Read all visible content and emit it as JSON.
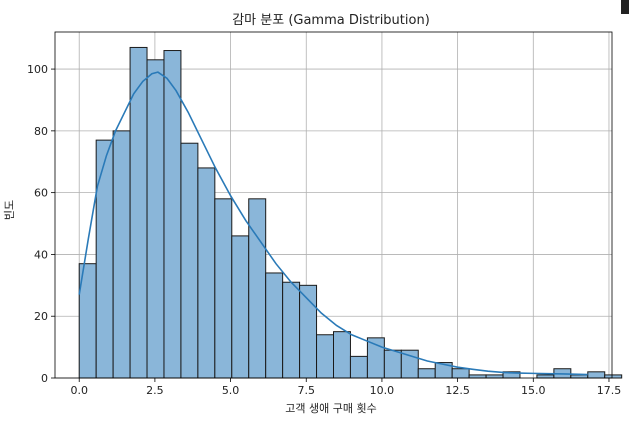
{
  "chart_data": {
    "type": "bar",
    "title": "감마 분포 (Gamma Distribution)",
    "xlabel": "고객 생애 구매 횟수",
    "ylabel": "빈도",
    "xlim": [
      -0.8,
      17.6
    ],
    "ylim": [
      0,
      112
    ],
    "grid": true,
    "bin_width": 0.56,
    "bin_start": 0.0,
    "x_ticks": [
      0.0,
      2.5,
      5.0,
      7.5,
      10.0,
      12.5,
      15.0,
      17.5
    ],
    "x_tick_labels": [
      "0.0",
      "2.5",
      "5.0",
      "7.5",
      "10.0",
      "12.5",
      "15.0",
      "17.5"
    ],
    "y_ticks": [
      0,
      20,
      40,
      60,
      80,
      100
    ],
    "y_tick_labels": [
      "0",
      "20",
      "40",
      "60",
      "80",
      "100"
    ],
    "values": [
      37,
      77,
      80,
      107,
      103,
      106,
      76,
      68,
      58,
      46,
      58,
      34,
      31,
      30,
      14,
      15,
      7,
      13,
      9,
      9,
      3,
      5,
      3,
      1,
      1,
      2,
      0,
      1,
      3,
      1,
      2,
      1
    ],
    "kde": {
      "x": [
        0.0,
        0.3,
        0.6,
        0.9,
        1.2,
        1.5,
        1.8,
        2.1,
        2.4,
        2.6,
        2.9,
        3.2,
        3.6,
        4.0,
        4.5,
        5.0,
        5.5,
        6.0,
        6.5,
        7.0,
        7.5,
        8.0,
        8.5,
        9.0,
        9.5,
        10.0,
        10.5,
        11.0,
        11.5,
        12.0,
        12.5,
        13.0,
        13.5,
        14.0,
        14.5,
        15.0,
        15.5,
        16.0,
        16.5,
        16.8
      ],
      "y": [
        27,
        45,
        62,
        72,
        80,
        86,
        92,
        96,
        98.5,
        99,
        97,
        93,
        86,
        78,
        68,
        59,
        51,
        44,
        37,
        31,
        26,
        21,
        17,
        14,
        12,
        10,
        8.5,
        7,
        5.5,
        4.5,
        3.5,
        2.8,
        2.2,
        1.8,
        1.6,
        1.5,
        1.4,
        1.3,
        1.2,
        1.1
      ]
    },
    "bar_color": "#8ab6d9",
    "line_color": "#2a7ab8"
  }
}
